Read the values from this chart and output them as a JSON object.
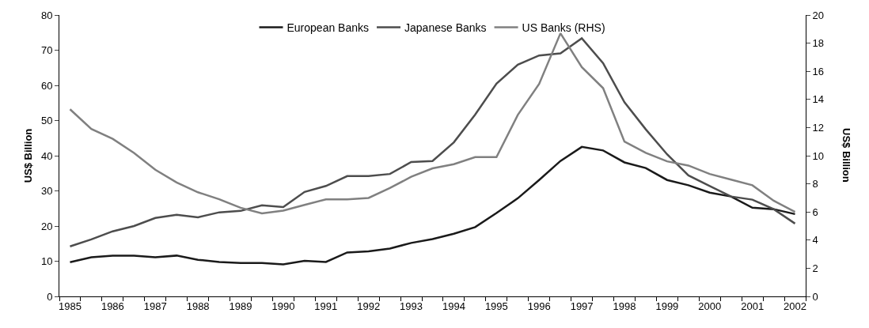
{
  "chart_data": {
    "type": "line",
    "categories": [
      "1985",
      null,
      "1986",
      null,
      "1987",
      null,
      "1988",
      null,
      "1989",
      null,
      "1990",
      null,
      "1991",
      null,
      "1992",
      null,
      "1993",
      null,
      "1994",
      null,
      "1995",
      null,
      "1996",
      null,
      "1997",
      null,
      "1998",
      null,
      "1999",
      null,
      "2000",
      null,
      "2001",
      null,
      "2002"
    ],
    "series": [
      {
        "name": "European Banks",
        "color": "#1a1a1a",
        "values": [
          9.7,
          11.1,
          11.6,
          11.6,
          11.1,
          11.6,
          10.4,
          9.8,
          9.5,
          9.5,
          9.1,
          10.1,
          9.8,
          12.5,
          12.8,
          13.6,
          15.2,
          16.3,
          17.8,
          19.7,
          23.7,
          27.9,
          33.1,
          38.5,
          42.5,
          41.5,
          38.1,
          36.5,
          33.1,
          31.6,
          29.5,
          28.4,
          25.2,
          24.8,
          23.4
        ]
      },
      {
        "name": "Japanese Banks",
        "color": "#4d4d4d",
        "values": [
          14.2,
          16.2,
          18.5,
          20.0,
          22.3,
          23.2,
          22.5,
          23.9,
          24.3,
          25.9,
          25.4,
          29.7,
          31.4,
          34.2,
          34.2,
          34.8,
          38.2,
          38.5,
          43.8,
          51.7,
          60.5,
          65.9,
          68.5,
          69.1,
          73.4,
          66.3,
          55.2,
          47.5,
          40.4,
          34.4,
          31.4,
          28.4,
          27.5,
          24.8,
          20.7
        ]
      },
      {
        "name": "US Banks (RHS)",
        "color": "#808080",
        "axis": "y2",
        "values": [
          13.3,
          11.9,
          11.2,
          10.2,
          9.0,
          8.1,
          7.4,
          6.9,
          6.3,
          5.9,
          6.1,
          6.5,
          6.9,
          6.9,
          7.0,
          7.7,
          8.5,
          9.1,
          9.4,
          9.9,
          9.9,
          12.9,
          15.1,
          18.7,
          16.3,
          14.8,
          11.0,
          10.2,
          9.6,
          9.3,
          8.7,
          8.3,
          7.9,
          6.8,
          6.0
        ]
      }
    ],
    "ylabel": "US$ Billion",
    "y2label": "US$ Billion",
    "ylim": [
      0,
      80
    ],
    "yticks": [
      0,
      10,
      20,
      30,
      40,
      50,
      60,
      70,
      80
    ],
    "y2lim": [
      0,
      20
    ],
    "y2ticks": [
      0,
      2,
      4,
      6,
      8,
      10,
      12,
      14,
      16,
      18,
      20
    ],
    "legend": "top",
    "marker": "none",
    "line_style": "solid"
  }
}
